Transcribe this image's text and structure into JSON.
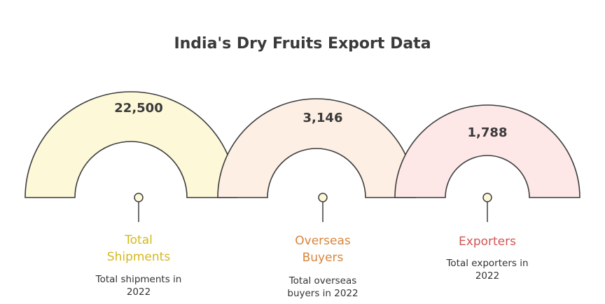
{
  "title": "India's Dry Fruits Export Data",
  "items": [
    {
      "value": "22,500",
      "label": "Total Shipments",
      "description": "Total shipments in 2022"
    },
    {
      "value": "3,146",
      "label": "Overseas Buyers",
      "description": "Total overseas buyers in 2022"
    },
    {
      "value": "1,788",
      "label": "Exporters",
      "description": "Total exporters in 2022"
    }
  ]
}
